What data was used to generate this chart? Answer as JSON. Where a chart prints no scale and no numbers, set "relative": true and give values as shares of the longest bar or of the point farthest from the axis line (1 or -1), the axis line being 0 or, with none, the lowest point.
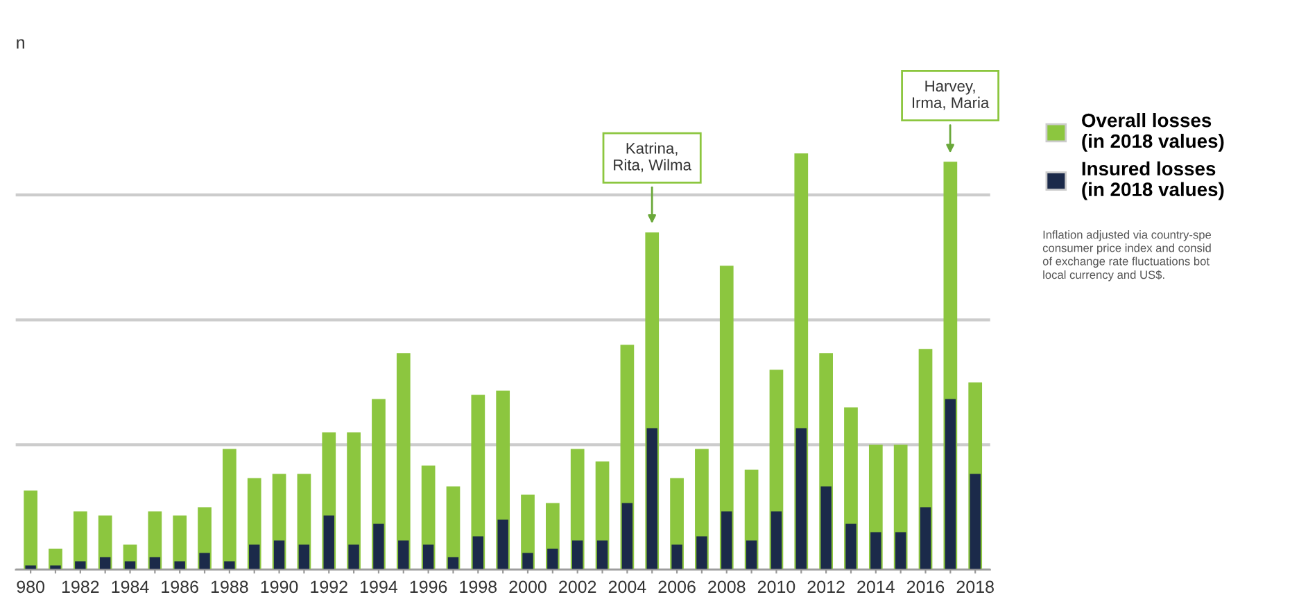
{
  "chart_data": {
    "type": "bar",
    "relative": true,
    "categories": [
      "980",
      null,
      "1982",
      null,
      "1984",
      null,
      "1986",
      null,
      "1988",
      null,
      "1990",
      null,
      "1992",
      null,
      "1994",
      null,
      "1996",
      null,
      "1998",
      null,
      "2000",
      null,
      "2002",
      null,
      "2004",
      null,
      "2006",
      null,
      "2008",
      null,
      "2010",
      null,
      "2012",
      null,
      "2014",
      null,
      "2016",
      null,
      "2018"
    ],
    "series": [
      {
        "name": "Overall losses\n(in 2018 values)",
        "color": "#8cc63f",
        "values": [
          0.19,
          0.05,
          0.14,
          0.13,
          0.06,
          0.14,
          0.13,
          0.15,
          0.29,
          0.22,
          0.23,
          0.23,
          0.33,
          0.33,
          0.41,
          0.52,
          0.25,
          0.2,
          0.42,
          0.43,
          0.18,
          0.16,
          0.29,
          0.26,
          0.54,
          0.81,
          0.22,
          0.29,
          0.73,
          0.24,
          0.48,
          1.0,
          0.52,
          0.39,
          0.3,
          0.3,
          0.53,
          0.98,
          0.45
        ]
      },
      {
        "name": "Insured losses\n(in 2018 values)",
        "color": "#1b2a4a",
        "values": [
          0.01,
          0.01,
          0.02,
          0.03,
          0.02,
          0.03,
          0.02,
          0.04,
          0.02,
          0.06,
          0.07,
          0.06,
          0.13,
          0.06,
          0.11,
          0.07,
          0.06,
          0.03,
          0.08,
          0.12,
          0.04,
          0.05,
          0.07,
          0.07,
          0.16,
          0.34,
          0.06,
          0.08,
          0.14,
          0.07,
          0.14,
          0.34,
          0.2,
          0.11,
          0.09,
          0.09,
          0.15,
          0.41,
          0.23
        ]
      }
    ],
    "annotations": [
      "n",
      "Katrina,\nRita, Wilma",
      "Harvey,\nIrma, Maria",
      "Inflation adjusted via country-spe\nconsumer price index and consid\nof exchange rate fluctuations bot\nlocal currency and US$."
    ],
    "grid": "y",
    "legend": "top right"
  }
}
